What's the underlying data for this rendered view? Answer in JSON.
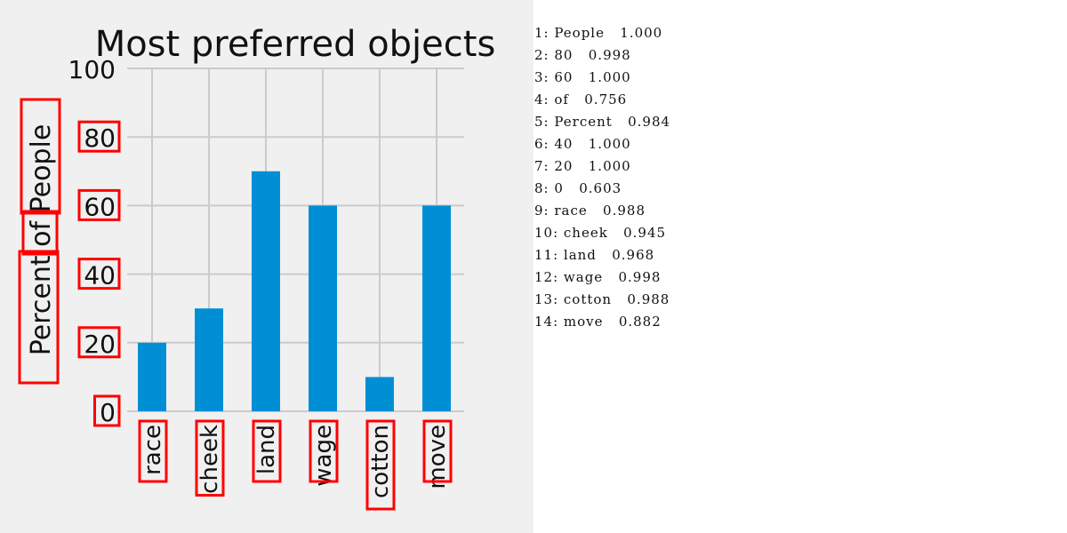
{
  "chart_data": {
    "type": "bar",
    "title": "Most preferred objects",
    "xlabel": "",
    "ylabel": "Percent of People",
    "categories": [
      "race",
      "cheek",
      "land",
      "wage",
      "cotton",
      "move"
    ],
    "values": [
      20,
      30,
      70,
      60,
      10,
      60
    ],
    "ylim": [
      0,
      100
    ],
    "yticks": [
      "0",
      "20",
      "40",
      "60",
      "80",
      "100"
    ],
    "grid": true,
    "bar_color": "#008fd5",
    "background_color": "#f0f0f0",
    "grid_color": "#cbcbcb",
    "box_color": "#ff0000"
  },
  "ocr_results": [
    {
      "index": "1:",
      "text": "People",
      "score": "1.000"
    },
    {
      "index": "2:",
      "text": "80",
      "score": "0.998"
    },
    {
      "index": "3:",
      "text": "60",
      "score": "1.000"
    },
    {
      "index": "4:",
      "text": "of",
      "score": "0.756"
    },
    {
      "index": "5:",
      "text": "Percent",
      "score": "0.984"
    },
    {
      "index": "6:",
      "text": "40",
      "score": "1.000"
    },
    {
      "index": "7:",
      "text": "20",
      "score": "1.000"
    },
    {
      "index": "8:",
      "text": "0",
      "score": "0.603"
    },
    {
      "index": "9:",
      "text": "race",
      "score": "0.988"
    },
    {
      "index": "10:",
      "text": "cheek",
      "score": "0.945"
    },
    {
      "index": "11:",
      "text": "land",
      "score": "0.968"
    },
    {
      "index": "12:",
      "text": "wage",
      "score": "0.998"
    },
    {
      "index": "13:",
      "text": "cotton",
      "score": "0.988"
    },
    {
      "index": "14:",
      "text": "move",
      "score": "0.882"
    }
  ]
}
